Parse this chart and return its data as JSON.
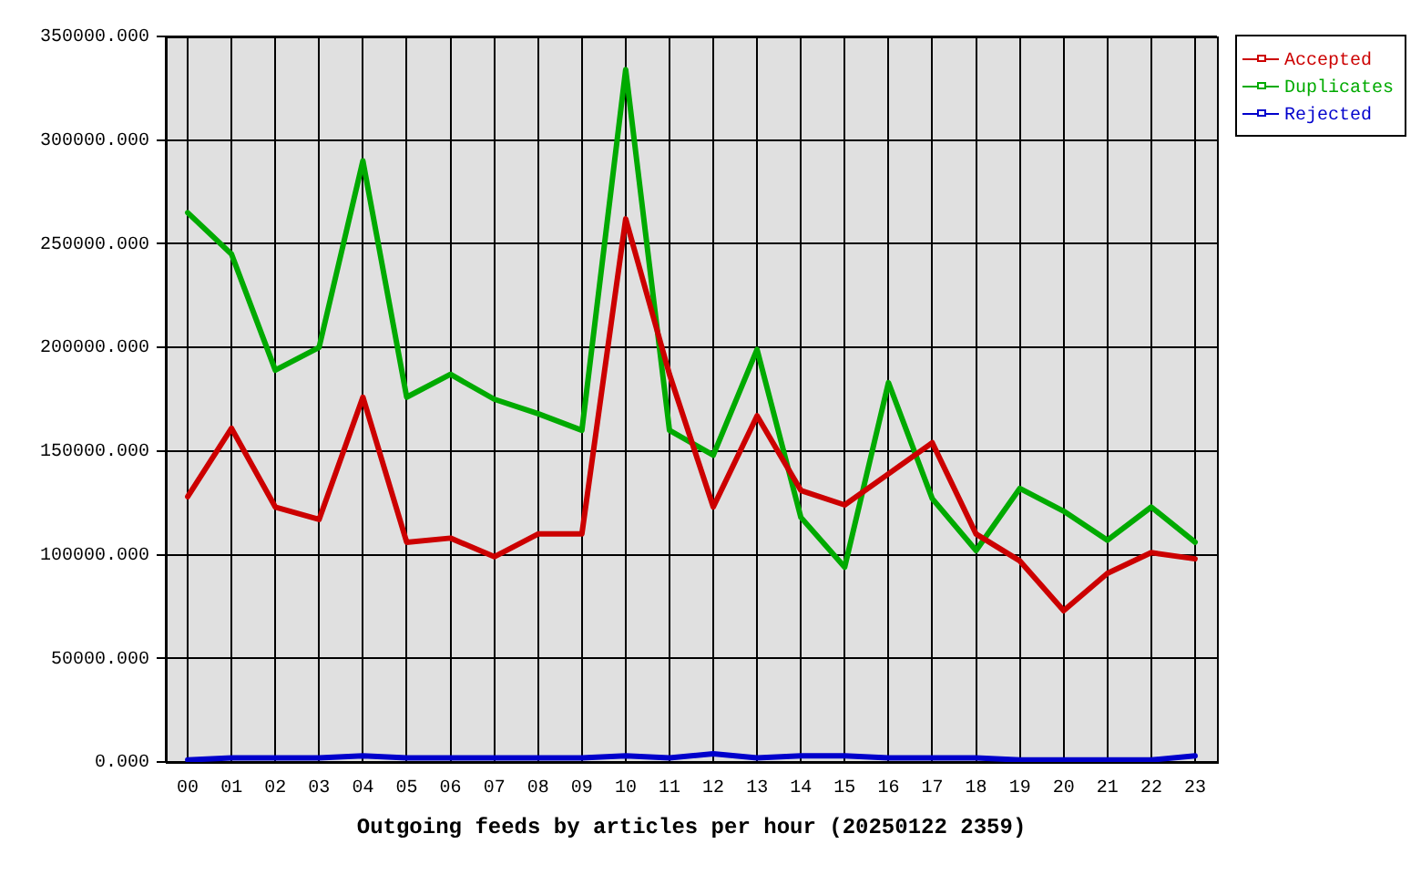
{
  "chart_data": {
    "type": "line",
    "xlabel": "Outgoing feeds by articles per hour (20250122 2359)",
    "categories": [
      "00",
      "01",
      "02",
      "03",
      "04",
      "05",
      "06",
      "07",
      "08",
      "09",
      "10",
      "11",
      "12",
      "13",
      "14",
      "15",
      "16",
      "17",
      "18",
      "19",
      "20",
      "21",
      "22",
      "23"
    ],
    "series": [
      {
        "name": "Accepted",
        "color": "#cc0000",
        "values": [
          128000,
          161000,
          123000,
          117000,
          176000,
          106000,
          108000,
          99000,
          110000,
          110000,
          262000,
          187000,
          123000,
          167000,
          131000,
          124000,
          139000,
          154000,
          110000,
          97000,
          73000,
          91000,
          101000,
          98000
        ]
      },
      {
        "name": "Duplicates",
        "color": "#00aa00",
        "values": [
          265000,
          245000,
          189000,
          200000,
          290000,
          176000,
          187000,
          175000,
          168000,
          160000,
          334000,
          160000,
          148000,
          199000,
          118000,
          94000,
          183000,
          127000,
          102000,
          132000,
          121000,
          107000,
          123000,
          106000
        ]
      },
      {
        "name": "Rejected",
        "color": "#0000cc",
        "values": [
          1000,
          2000,
          2000,
          2000,
          3000,
          2000,
          2000,
          2000,
          2000,
          2000,
          3000,
          2000,
          4000,
          2000,
          3000,
          3000,
          2000,
          2000,
          2000,
          1000,
          1000,
          1000,
          1000,
          3000
        ]
      }
    ],
    "ylim": [
      0,
      350000
    ],
    "yticks": [
      {
        "value": 0,
        "label": "0.000"
      },
      {
        "value": 50000,
        "label": "50000.000"
      },
      {
        "value": 100000,
        "label": "100000.000"
      },
      {
        "value": 150000,
        "label": "150000.000"
      },
      {
        "value": 200000,
        "label": "200000.000"
      },
      {
        "value": 250000,
        "label": "250000.000"
      },
      {
        "value": 300000,
        "label": "300000.000"
      },
      {
        "value": 350000,
        "label": "350000.000"
      }
    ],
    "grid": true,
    "legend": "top right",
    "line_style": "solid"
  }
}
